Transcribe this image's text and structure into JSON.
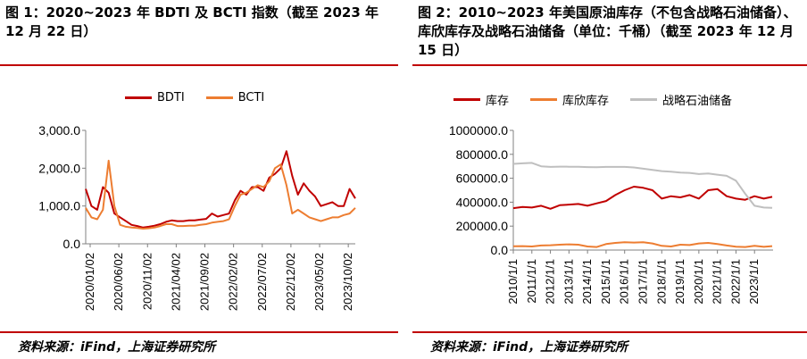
{
  "left": {
    "title": "图 1：2020~2023 年 BDTI 及 BCTI 指数（截至 2023 年 12 月 22 日）",
    "source": "资料来源：iFind，上海证券研究所",
    "chart_data": {
      "type": "line",
      "ylim": [
        0,
        3000
      ],
      "y_ticks": [
        "0.0",
        "1,000.0",
        "2,000.0",
        "3,000.0"
      ],
      "y_tick_values": [
        0,
        1000,
        2000,
        3000
      ],
      "x_tick_labels": [
        "2020/01/02",
        "2020/06/02",
        "2020/11/02",
        "2021/04/02",
        "2021/09/02",
        "2022/02/02",
        "2022/07/02",
        "2022/12/02",
        "2023/05/02",
        "2023/10/02"
      ],
      "x": [
        "2020/01/02",
        "2020/02/02",
        "2020/03/02",
        "2020/04/02",
        "2020/05/02",
        "2020/06/02",
        "2020/07/02",
        "2020/08/02",
        "2020/09/02",
        "2020/10/02",
        "2020/11/02",
        "2020/12/02",
        "2021/01/02",
        "2021/02/02",
        "2021/03/02",
        "2021/04/02",
        "2021/05/02",
        "2021/06/02",
        "2021/07/02",
        "2021/08/02",
        "2021/09/02",
        "2021/10/02",
        "2021/11/02",
        "2021/12/02",
        "2022/01/02",
        "2022/02/02",
        "2022/03/02",
        "2022/04/02",
        "2022/05/02",
        "2022/06/02",
        "2022/07/02",
        "2022/08/02",
        "2022/09/02",
        "2022/10/02",
        "2022/11/02",
        "2022/12/02",
        "2023/01/02",
        "2023/02/02",
        "2023/03/02",
        "2023/04/02",
        "2023/05/02",
        "2023/06/02",
        "2023/07/02",
        "2023/08/02",
        "2023/09/02",
        "2023/10/02",
        "2023/11/02",
        "2023/12/02"
      ],
      "series": [
        {
          "name": "BDTI",
          "color": "#c00000",
          "values": [
            1450,
            1000,
            900,
            1500,
            1350,
            800,
            700,
            600,
            500,
            470,
            430,
            450,
            480,
            520,
            580,
            620,
            600,
            600,
            620,
            620,
            640,
            660,
            800,
            720,
            760,
            800,
            1150,
            1400,
            1300,
            1500,
            1500,
            1400,
            1750,
            1850,
            2000,
            2450,
            1800,
            1300,
            1600,
            1400,
            1250,
            1000,
            1050,
            1100,
            1000,
            1000,
            1450,
            1200
          ]
        },
        {
          "name": "BCTI",
          "color": "#ed7d31",
          "values": [
            950,
            700,
            650,
            900,
            2200,
            1000,
            500,
            450,
            430,
            420,
            400,
            410,
            430,
            470,
            520,
            520,
            470,
            470,
            480,
            480,
            500,
            520,
            560,
            580,
            600,
            650,
            1000,
            1300,
            1350,
            1450,
            1550,
            1500,
            1650,
            2000,
            2100,
            1550,
            800,
            900,
            800,
            700,
            650,
            600,
            650,
            700,
            700,
            760,
            800,
            950
          ]
        }
      ]
    }
  },
  "right": {
    "title": "图 2：2010~2023 年美国原油库存（不包含战略石油储备）、库欣库存及战略石油储备（单位：千桶）（截至 2023 年 12 月 15 日）",
    "source": "资料来源：iFind，上海证券研究所",
    "chart_data": {
      "type": "line",
      "ylim": [
        0,
        1000000
      ],
      "y_ticks": [
        "0.0",
        "200000.0",
        "400000.0",
        "600000.0",
        "800000.0",
        "1000000.0"
      ],
      "y_tick_values": [
        0,
        200000,
        400000,
        600000,
        800000,
        1000000
      ],
      "x_tick_labels": [
        "2010/1/1",
        "2011/1/1",
        "2012/1/1",
        "2013/1/1",
        "2014/1/1",
        "2015/1/1",
        "2016/1/1",
        "2017/1/1",
        "2018/1/1",
        "2019/1/1",
        "2020/1/1",
        "2021/1/1",
        "2022/1/1",
        "2023/1/1"
      ],
      "x": [
        2010,
        2010.5,
        2011,
        2011.5,
        2012,
        2012.5,
        2013,
        2013.5,
        2014,
        2014.5,
        2015,
        2015.5,
        2016,
        2016.5,
        2017,
        2017.5,
        2018,
        2018.5,
        2019,
        2019.5,
        2020,
        2020.5,
        2021,
        2021.5,
        2022,
        2022.5,
        2023,
        2023.5,
        2023.95
      ],
      "series": [
        {
          "name": "库存",
          "color": "#c00000",
          "values": [
            350000,
            360000,
            355000,
            370000,
            345000,
            375000,
            380000,
            385000,
            370000,
            390000,
            410000,
            460000,
            500000,
            530000,
            520000,
            500000,
            430000,
            450000,
            440000,
            460000,
            430000,
            500000,
            510000,
            450000,
            430000,
            420000,
            450000,
            430000,
            445000
          ]
        },
        {
          "name": "库欣库存",
          "color": "#ed7d31",
          "values": [
            32000,
            33000,
            30000,
            38000,
            40000,
            45000,
            48000,
            45000,
            30000,
            25000,
            50000,
            60000,
            65000,
            63000,
            65000,
            55000,
            35000,
            30000,
            45000,
            42000,
            55000,
            60000,
            50000,
            38000,
            28000,
            25000,
            35000,
            27000,
            33000
          ]
        },
        {
          "name": "战略石油储备",
          "color": "#bfbfbf",
          "values": [
            720000,
            725000,
            728000,
            700000,
            695000,
            697000,
            696000,
            696000,
            693000,
            692000,
            695000,
            695000,
            695000,
            690000,
            680000,
            670000,
            660000,
            655000,
            648000,
            645000,
            635000,
            640000,
            630000,
            620000,
            580000,
            470000,
            370000,
            355000,
            352000
          ]
        }
      ]
    }
  }
}
